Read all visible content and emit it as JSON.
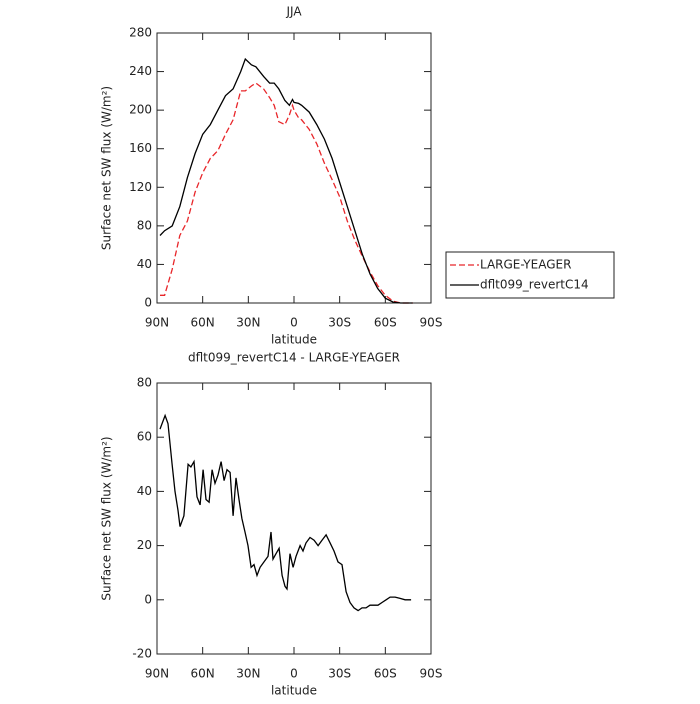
{
  "chart_data": [
    {
      "type": "line",
      "title": "JJA",
      "x_label": "latitude",
      "y_label": "Surface net SW flux (W/m²)",
      "x": [
        88,
        85,
        80,
        75,
        70,
        65,
        60,
        55,
        50,
        45,
        40,
        35,
        32,
        28,
        25,
        20,
        16,
        13,
        10,
        6,
        3,
        1,
        0,
        -3,
        -5,
        -10,
        -15,
        -20,
        -25,
        -30,
        -35,
        -40,
        -45,
        -50,
        -55,
        -60,
        -65,
        -70,
        -78
      ],
      "series": [
        {
          "name": "LARGE-YEAGER",
          "color": "#e8262a",
          "line_style": "dashed",
          "values": [
            8,
            8,
            35,
            70,
            85,
            115,
            135,
            150,
            158,
            175,
            190,
            220,
            220,
            225,
            228,
            222,
            213,
            205,
            188,
            185,
            195,
            205,
            200,
            192,
            190,
            180,
            165,
            145,
            128,
            110,
            85,
            65,
            48,
            32,
            18,
            8,
            2,
            0,
            0
          ]
        },
        {
          "name": "dflt099_revertC14",
          "color": "#000000",
          "line_style": "solid",
          "values": [
            70,
            75,
            80,
            100,
            130,
            155,
            175,
            185,
            200,
            215,
            222,
            240,
            253,
            247,
            245,
            235,
            228,
            228,
            222,
            210,
            205,
            211,
            208,
            207,
            205,
            198,
            185,
            170,
            150,
            125,
            100,
            75,
            50,
            30,
            15,
            5,
            1,
            0,
            0
          ]
        }
      ],
      "xlim": [
        90,
        -90
      ],
      "xticks": [
        {
          "value": 90,
          "label": "90N"
        },
        {
          "value": 60,
          "label": "60N"
        },
        {
          "value": 30,
          "label": "30N"
        },
        0,
        {
          "value": -30,
          "label": "30S"
        },
        {
          "value": -60,
          "label": "60S"
        },
        {
          "value": -90,
          "label": "90S"
        }
      ],
      "ylim": [
        0,
        280
      ],
      "yticks": [
        0,
        40,
        80,
        120,
        160,
        200,
        240,
        280
      ],
      "legend": "right"
    },
    {
      "type": "line",
      "title": "dflt099_revertC14 - LARGE-YEAGER",
      "x_label": "latitude",
      "y_label": "Surface net SW flux (W/m²)",
      "x": [
        88,
        84.7,
        82.8,
        80.1,
        78.2,
        76.2,
        74.9,
        72.3,
        69.6,
        67.7,
        65.7,
        63.7,
        61.7,
        59.7,
        57.8,
        55.8,
        53.8,
        51.9,
        49.9,
        47.9,
        45.9,
        44,
        42,
        40,
        38.1,
        36.1,
        34.2,
        32.2,
        30.2,
        28.2,
        26.3,
        24.3,
        22.3,
        19.7,
        17.1,
        15.1,
        13.8,
        11.8,
        9.8,
        7.8,
        5.9,
        4.6,
        2.6,
        0.6,
        -1.3,
        -4,
        -5.9,
        -7.9,
        -10.5,
        -13.2,
        -15.8,
        -18.4,
        -21.1,
        -23.7,
        -26.3,
        -28.9,
        -31.5,
        -34.2,
        -36.8,
        -39.4,
        -42.1,
        -44.7,
        -47.3,
        -49.9,
        -52.6,
        -55.2,
        -57.8,
        -60.5,
        -63.1,
        -66.4,
        -69.7,
        -73,
        -76.9
      ],
      "series": [
        {
          "color": "#000000",
          "line_style": "solid",
          "values": [
            63,
            68,
            65,
            50,
            40,
            33,
            27,
            31,
            50,
            49,
            51,
            38,
            35,
            48,
            37,
            36,
            48,
            43,
            46,
            51,
            44,
            48,
            47,
            31,
            45,
            37,
            30,
            25,
            20,
            12,
            13,
            9,
            12,
            14,
            16,
            25,
            15,
            17,
            19,
            9,
            5,
            4,
            17,
            12,
            16,
            20,
            18,
            21,
            23,
            22,
            20,
            22,
            24,
            21,
            18,
            14,
            13,
            3,
            -1,
            -3,
            -4,
            -3,
            -3,
            -2,
            -2,
            -2,
            -1,
            0,
            1,
            1,
            0.5,
            0,
            0
          ]
        }
      ],
      "xlim": [
        90,
        -90
      ],
      "xticks": [
        {
          "value": 90,
          "label": "90N"
        },
        {
          "value": 60,
          "label": "60N"
        },
        {
          "value": 30,
          "label": "30N"
        },
        0,
        {
          "value": -30,
          "label": "30S"
        },
        {
          "value": -60,
          "label": "60S"
        },
        {
          "value": -90,
          "label": "90S"
        }
      ],
      "ylim": [
        -20,
        80
      ],
      "yticks": [
        -20,
        0,
        20,
        40,
        60,
        80
      ]
    }
  ]
}
